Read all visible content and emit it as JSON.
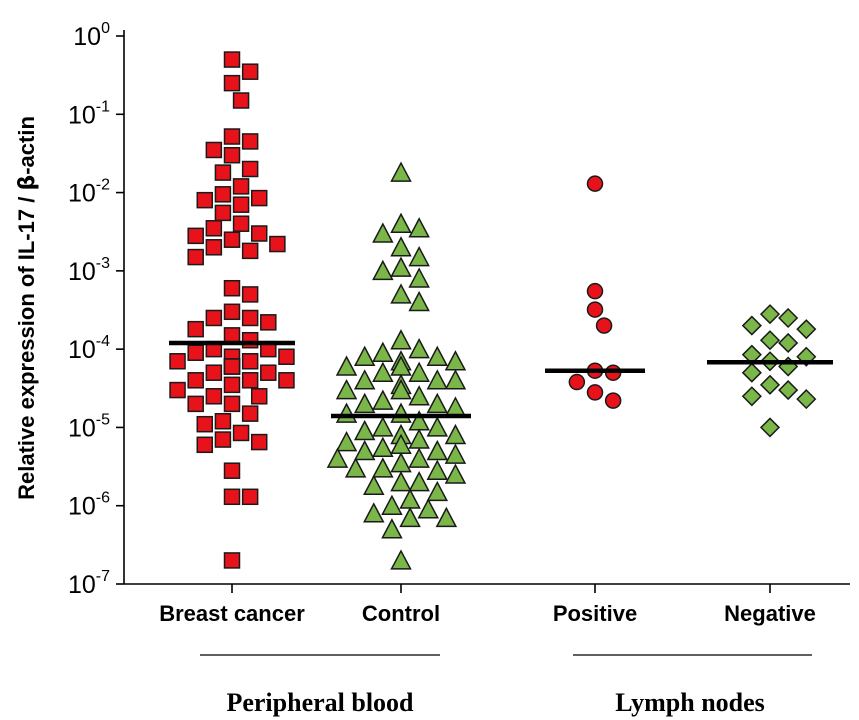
{
  "chart_data": {
    "type": "scatter",
    "ylabel_text": "Relative expression of IL-17 / ",
    "ylabel_symbol": "β",
    "ylabel_suffix": "-actin",
    "y_scale": "log",
    "ylim": [
      1e-07,
      1
    ],
    "y_ticks": [
      {
        "base": "10",
        "exp": "0",
        "value": 1
      },
      {
        "base": "10",
        "exp": "-1",
        "value": 0.1
      },
      {
        "base": "10",
        "exp": "-2",
        "value": 0.01
      },
      {
        "base": "10",
        "exp": "-3",
        "value": 0.001
      },
      {
        "base": "10",
        "exp": "-4",
        "value": 0.0001
      },
      {
        "base": "10",
        "exp": "-5",
        "value": 1e-05
      },
      {
        "base": "10",
        "exp": "-6",
        "value": 1e-06
      },
      {
        "base": "10",
        "exp": "-7",
        "value": 1e-07
      }
    ],
    "grid": false,
    "colors": {
      "red": "#e8131a",
      "green": "#7ab648",
      "median": "#000000"
    },
    "categories": [
      "Breast cancer",
      "Control",
      "Positive",
      "Negative"
    ],
    "groups": [
      {
        "label": "Peripheral blood",
        "categories": [
          "Breast cancer",
          "Control"
        ]
      },
      {
        "label": "Lymph nodes",
        "categories": [
          "Positive",
          "Negative"
        ]
      }
    ],
    "series": [
      {
        "category": "Breast cancer",
        "marker": "square",
        "color": "#e8131a",
        "median": 0.00012,
        "values": [
          0.5,
          0.35,
          0.25,
          0.15,
          0.052,
          0.045,
          0.035,
          0.03,
          0.02,
          0.018,
          0.012,
          0.0095,
          0.0085,
          0.008,
          0.007,
          0.0055,
          0.004,
          0.0035,
          0.003,
          0.0028,
          0.0025,
          0.0022,
          0.002,
          0.0018,
          0.0015,
          0.0006,
          0.0005,
          0.0003,
          0.00025,
          0.00025,
          0.00022,
          0.00018,
          0.00015,
          0.00013,
          0.0001,
          0.0001,
          9e-05,
          8e-05,
          8e-05,
          7e-05,
          7e-05,
          6e-05,
          6e-05,
          6e-05,
          5e-05,
          5e-05,
          4e-05,
          4e-05,
          4e-05,
          3.5e-05,
          3e-05,
          2.5e-05,
          2.5e-05,
          2e-05,
          2e-05,
          1.5e-05,
          1.2e-05,
          1.1e-05,
          8.5e-06,
          7e-06,
          6.5e-06,
          6e-06,
          2.8e-06,
          1.3e-06,
          1.3e-06,
          2e-07
        ]
      },
      {
        "category": "Control",
        "marker": "triangle",
        "color": "#7ab648",
        "median": 1.4e-05,
        "values": [
          0.018,
          0.004,
          0.0035,
          0.003,
          0.002,
          0.0015,
          0.0011,
          0.001,
          0.0008,
          0.0005,
          0.0004,
          0.00013,
          0.0001,
          9e-05,
          8e-05,
          8e-05,
          7e-05,
          7e-05,
          6e-05,
          6e-05,
          5e-05,
          5e-05,
          4e-05,
          4e-05,
          4e-05,
          3.5e-05,
          3e-05,
          3e-05,
          2.5e-05,
          2.2e-05,
          2e-05,
          2e-05,
          1.8e-05,
          1.5e-05,
          1.5e-05,
          1.2e-05,
          1e-05,
          1e-05,
          9e-06,
          8e-06,
          8e-06,
          7e-06,
          6.5e-06,
          6e-06,
          5.5e-06,
          5e-06,
          5e-06,
          4.5e-06,
          4e-06,
          4e-06,
          3.5e-06,
          3e-06,
          3e-06,
          2.8e-06,
          2.5e-06,
          2e-06,
          2e-06,
          1.8e-06,
          1.5e-06,
          1.2e-06,
          1e-06,
          9e-07,
          8e-07,
          7e-07,
          7e-07,
          5e-07,
          2e-07
        ]
      },
      {
        "category": "Positive",
        "marker": "circle",
        "color": "#e8131a",
        "median": 5.3e-05,
        "values": [
          0.013,
          0.00055,
          0.00032,
          0.0002,
          5.3e-05,
          5e-05,
          3.8e-05,
          2.8e-05,
          2.2e-05
        ]
      },
      {
        "category": "Negative",
        "marker": "diamond",
        "color": "#7ab648",
        "median": 6.8e-05,
        "values": [
          0.00028,
          0.00025,
          0.0002,
          0.00018,
          0.00013,
          0.00012,
          8.5e-05,
          8e-05,
          7e-05,
          6e-05,
          5e-05,
          3.5e-05,
          3e-05,
          2.5e-05,
          2.3e-05,
          1e-05
        ]
      }
    ]
  }
}
